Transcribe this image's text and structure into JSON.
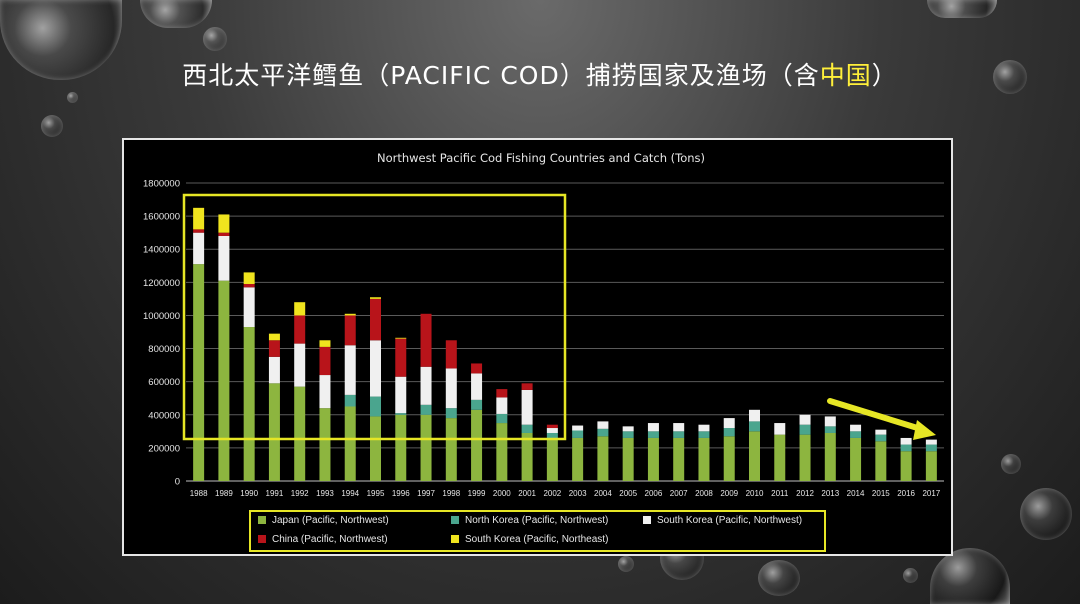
{
  "slide_title": {
    "before": "西北太平洋鳕鱼（PACIFIC COD）捕捞国家及渔场（含",
    "highlight": "中国",
    "after": "）"
  },
  "colors": {
    "japan": "#8db53f",
    "north_korea": "#4aa58e",
    "south_korea_nw": "#f0f0f0",
    "china": "#b8141a",
    "south_korea_ne": "#f0e41e",
    "highlight_box": "#e6e625",
    "arrow": "#e6e625"
  },
  "chart_data": {
    "type": "bar",
    "stacked": true,
    "title": "Northwest Pacific Cod Fishing Countries and Catch (Tons)",
    "ylim": [
      0,
      1800000
    ],
    "yticks": [
      "1800000",
      "1600000",
      "1400000",
      "1200000",
      "1000000",
      "800000",
      "600000",
      "400000",
      "200000",
      "0"
    ],
    "grid": true,
    "legend_position": "bottom",
    "categories": [
      "1988",
      "1989",
      "1990",
      "1991",
      "1992",
      "1993",
      "1994",
      "1995",
      "1996",
      "1997",
      "1998",
      "1999",
      "2000",
      "2001",
      "2002",
      "2003",
      "2004",
      "2005",
      "2006",
      "2007",
      "2008",
      "2009",
      "2010",
      "2011",
      "2012",
      "2013",
      "2014",
      "2015",
      "2016",
      "2017"
    ],
    "series": [
      {
        "name": "Japan (Pacific, Northwest)",
        "color_key": "japan",
        "values": [
          1310000,
          1210000,
          930000,
          590000,
          570000,
          440000,
          450000,
          390000,
          400000,
          400000,
          380000,
          430000,
          350000,
          290000,
          250000,
          260000,
          270000,
          260000,
          260000,
          260000,
          260000,
          270000,
          300000,
          280000,
          280000,
          290000,
          260000,
          240000,
          180000,
          180000
        ]
      },
      {
        "name": "North Korea (Pacific, Northwest)",
        "color_key": "north_korea",
        "values": [
          0,
          0,
          0,
          0,
          0,
          0,
          70000,
          120000,
          10000,
          60000,
          60000,
          60000,
          55000,
          50000,
          40000,
          45000,
          45000,
          40000,
          40000,
          40000,
          40000,
          50000,
          60000,
          0,
          60000,
          40000,
          40000,
          40000,
          40000,
          40000
        ]
      },
      {
        "name": "South Korea (Pacific, Northwest)",
        "color_key": "south_korea_nw",
        "values": [
          190000,
          270000,
          240000,
          160000,
          260000,
          200000,
          300000,
          340000,
          220000,
          230000,
          240000,
          160000,
          100000,
          210000,
          30000,
          30000,
          45000,
          30000,
          50000,
          50000,
          40000,
          60000,
          70000,
          70000,
          60000,
          60000,
          40000,
          30000,
          40000,
          30000
        ]
      },
      {
        "name": "China (Pacific, Northwest)",
        "color_key": "china",
        "values": [
          20000,
          20000,
          20000,
          100000,
          170000,
          170000,
          180000,
          250000,
          230000,
          320000,
          170000,
          60000,
          50000,
          40000,
          20000,
          0,
          0,
          0,
          0,
          0,
          0,
          0,
          0,
          0,
          0,
          0,
          0,
          0,
          0,
          0
        ]
      },
      {
        "name": "South Korea (Pacific, Northeast)",
        "color_key": "south_korea_ne",
        "values": [
          130000,
          110000,
          70000,
          40000,
          80000,
          40000,
          10000,
          10000,
          5000,
          0,
          0,
          0,
          0,
          0,
          0,
          0,
          0,
          0,
          0,
          0,
          0,
          0,
          0,
          0,
          0,
          0,
          0,
          0,
          0,
          0
        ]
      }
    ]
  }
}
